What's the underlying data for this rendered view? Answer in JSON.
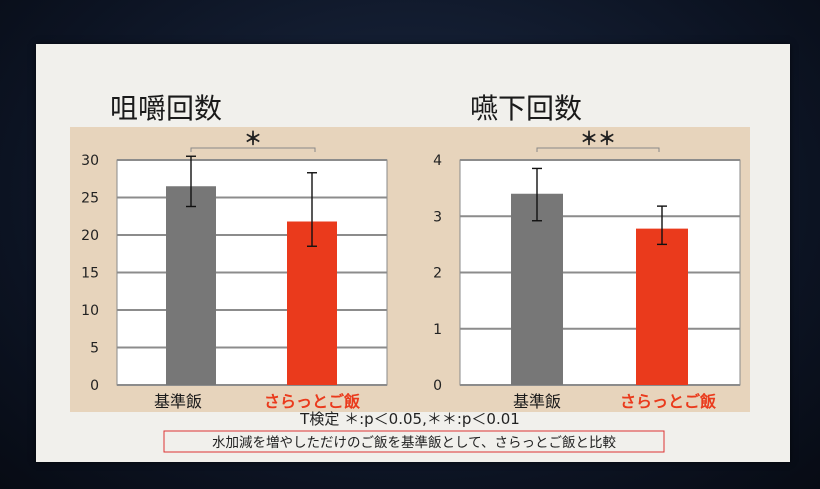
{
  "chart_data": [
    {
      "type": "bar",
      "title": "咀嚼回数",
      "categories": [
        "基準飯",
        "さらっとご飯"
      ],
      "values": [
        26.5,
        21.8
      ],
      "error_high": [
        30.5,
        28.3
      ],
      "error_low": [
        23.8,
        18.5
      ],
      "ylim": [
        0,
        30
      ],
      "yticks": [
        "0",
        "5",
        "10",
        "15",
        "20",
        "25",
        "30"
      ],
      "grid": true,
      "significance": "＊",
      "colors": [
        "#777777",
        "#ea3a1c"
      ]
    },
    {
      "type": "bar",
      "title": "嚥下回数",
      "categories": [
        "基準飯",
        "さらっとご飯"
      ],
      "values": [
        3.4,
        2.78
      ],
      "error_high": [
        3.85,
        3.18
      ],
      "error_low": [
        2.92,
        2.5
      ],
      "ylim": [
        0,
        4
      ],
      "yticks": [
        "0",
        "1",
        "2",
        "3",
        "4"
      ],
      "grid": true,
      "significance": "＊＊",
      "colors": [
        "#777777",
        "#ea3a1c"
      ]
    }
  ],
  "footnote": "T検定 ＊:p＜0.05,＊＊:p＜0.01",
  "caption": "水加減を増やしただけのご飯を基準飯として、さらっとご飯と比較"
}
